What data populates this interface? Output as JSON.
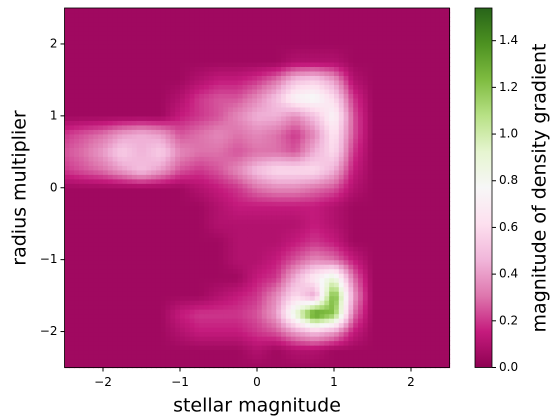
{
  "chart_data": {
    "type": "contourf",
    "xlabel": "stellar magnitude",
    "ylabel": "radius multiplier",
    "x": [
      -2.5,
      -2.25,
      -2,
      -1.75,
      -1.5,
      -1.25,
      -1,
      -0.75,
      -0.5,
      -0.25,
      0,
      0.25,
      0.5,
      0.75,
      1,
      1.25,
      1.5,
      1.75,
      2,
      2.25,
      2.5
    ],
    "y": [
      -2.5,
      -2.25,
      -2,
      -1.75,
      -1.5,
      -1.25,
      -1,
      -0.75,
      -0.5,
      -0.25,
      0,
      0.25,
      0.5,
      0.75,
      1,
      1.25,
      1.5,
      1.75,
      2,
      2.25,
      2.5
    ],
    "z": [
      [
        0.05,
        0.05,
        0.05,
        0.05,
        0.05,
        0.05,
        0.05,
        0.05,
        0.05,
        0.05,
        0.05,
        0.05,
        0.05,
        0.05,
        0.05,
        0.05,
        0.05,
        0.05,
        0.05,
        0.05,
        0.05
      ],
      [
        0.05,
        0.05,
        0.05,
        0.05,
        0.05,
        0.05,
        0.05,
        0.05,
        0.05,
        0.05,
        0.1,
        0.05,
        0.1,
        0.1,
        0.05,
        0.05,
        0.05,
        0.05,
        0.05,
        0.05,
        0.05
      ],
      [
        0.05,
        0.05,
        0.05,
        0.05,
        0.05,
        0.05,
        0.1,
        0.15,
        0.15,
        0.15,
        0.2,
        0.25,
        0.4,
        0.5,
        0.4,
        0.15,
        0.05,
        0.05,
        0.05,
        0.05,
        0.05
      ],
      [
        0.05,
        0.05,
        0.05,
        0.05,
        0.05,
        0.05,
        0.15,
        0.2,
        0.2,
        0.2,
        0.25,
        0.4,
        0.9,
        1.4,
        1.2,
        0.3,
        0.05,
        0.05,
        0.05,
        0.05,
        0.05
      ],
      [
        0.05,
        0.05,
        0.05,
        0.05,
        0.05,
        0.05,
        0.05,
        0.05,
        0.1,
        0.15,
        0.2,
        0.35,
        0.6,
        0.4,
        1.3,
        0.4,
        0.05,
        0.05,
        0.05,
        0.05,
        0.05
      ],
      [
        0.05,
        0.05,
        0.05,
        0.05,
        0.05,
        0.05,
        0.05,
        0.05,
        0.05,
        0.05,
        0.15,
        0.2,
        0.45,
        0.7,
        0.9,
        0.3,
        0.05,
        0.05,
        0.05,
        0.05,
        0.05
      ],
      [
        0.05,
        0.05,
        0.05,
        0.05,
        0.05,
        0.05,
        0.05,
        0.05,
        0.05,
        0.1,
        0.1,
        0.15,
        0.25,
        0.35,
        0.3,
        0.15,
        0.05,
        0.05,
        0.05,
        0.05,
        0.05
      ],
      [
        0.05,
        0.05,
        0.05,
        0.05,
        0.05,
        0.05,
        0.05,
        0.05,
        0.05,
        0.1,
        0.1,
        0.1,
        0.15,
        0.2,
        0.15,
        0.05,
        0.05,
        0.05,
        0.05,
        0.05,
        0.05
      ],
      [
        0.05,
        0.05,
        0.05,
        0.05,
        0.05,
        0.05,
        0.05,
        0.05,
        0.1,
        0.1,
        0.1,
        0.1,
        0.1,
        0.15,
        0.1,
        0.05,
        0.05,
        0.05,
        0.05,
        0.05,
        0.05
      ],
      [
        0.05,
        0.05,
        0.05,
        0.05,
        0.05,
        0.05,
        0.05,
        0.05,
        0.1,
        0.15,
        0.15,
        0.15,
        0.15,
        0.15,
        0.1,
        0.05,
        0.05,
        0.05,
        0.05,
        0.05,
        0.05
      ],
      [
        0.05,
        0.05,
        0.05,
        0.05,
        0.05,
        0.05,
        0.05,
        0.1,
        0.15,
        0.2,
        0.3,
        0.35,
        0.35,
        0.3,
        0.25,
        0.1,
        0.05,
        0.05,
        0.05,
        0.05,
        0.05
      ],
      [
        0.2,
        0.25,
        0.3,
        0.4,
        0.5,
        0.4,
        0.25,
        0.2,
        0.25,
        0.35,
        0.5,
        0.6,
        0.6,
        0.6,
        0.45,
        0.15,
        0.05,
        0.05,
        0.05,
        0.05,
        0.05
      ],
      [
        0.25,
        0.3,
        0.4,
        0.55,
        0.45,
        0.55,
        0.35,
        0.3,
        0.3,
        0.25,
        0.3,
        0.3,
        0.25,
        0.45,
        0.6,
        0.2,
        0.05,
        0.05,
        0.05,
        0.05,
        0.05
      ],
      [
        0.2,
        0.25,
        0.3,
        0.4,
        0.45,
        0.4,
        0.25,
        0.3,
        0.35,
        0.3,
        0.35,
        0.3,
        0.2,
        0.35,
        0.65,
        0.25,
        0.05,
        0.05,
        0.05,
        0.05,
        0.05
      ],
      [
        0.05,
        0.05,
        0.05,
        0.05,
        0.05,
        0.05,
        0.15,
        0.2,
        0.25,
        0.35,
        0.45,
        0.45,
        0.35,
        0.5,
        0.75,
        0.25,
        0.05,
        0.05,
        0.05,
        0.05,
        0.05
      ],
      [
        0.05,
        0.05,
        0.05,
        0.05,
        0.05,
        0.05,
        0.1,
        0.2,
        0.25,
        0.25,
        0.35,
        0.5,
        0.75,
        0.8,
        0.6,
        0.2,
        0.05,
        0.05,
        0.05,
        0.05,
        0.05
      ],
      [
        0.05,
        0.05,
        0.05,
        0.05,
        0.05,
        0.05,
        0.05,
        0.1,
        0.15,
        0.15,
        0.2,
        0.3,
        0.5,
        0.55,
        0.4,
        0.1,
        0.05,
        0.05,
        0.05,
        0.05,
        0.05
      ],
      [
        0.05,
        0.05,
        0.05,
        0.05,
        0.05,
        0.05,
        0.05,
        0.05,
        0.05,
        0.05,
        0.05,
        0.05,
        0.1,
        0.1,
        0.1,
        0.05,
        0.05,
        0.05,
        0.05,
        0.05,
        0.05
      ],
      [
        0.05,
        0.05,
        0.05,
        0.05,
        0.05,
        0.05,
        0.05,
        0.05,
        0.05,
        0.05,
        0.05,
        0.05,
        0.05,
        0.05,
        0.05,
        0.05,
        0.05,
        0.05,
        0.05,
        0.05,
        0.05
      ],
      [
        0.05,
        0.05,
        0.05,
        0.05,
        0.05,
        0.05,
        0.05,
        0.05,
        0.05,
        0.05,
        0.05,
        0.05,
        0.05,
        0.05,
        0.05,
        0.05,
        0.05,
        0.05,
        0.05,
        0.05,
        0.05
      ],
      [
        0.05,
        0.05,
        0.05,
        0.05,
        0.05,
        0.05,
        0.05,
        0.05,
        0.05,
        0.05,
        0.05,
        0.05,
        0.05,
        0.05,
        0.05,
        0.05,
        0.05,
        0.05,
        0.05,
        0.05,
        0.05
      ]
    ],
    "xlim": [
      -2.5,
      2.5
    ],
    "ylim": [
      -2.5,
      2.5
    ],
    "xticks": [
      {
        "value": -2,
        "label": "−2"
      },
      {
        "value": -1,
        "label": "−1"
      },
      0,
      1,
      2
    ],
    "yticks": [
      {
        "value": -2,
        "label": "−2"
      },
      {
        "value": -1,
        "label": "−1"
      },
      0,
      1,
      2
    ],
    "colormap": [
      "#8e0152",
      "#c51b7d",
      "#de77ae",
      "#f1b6da",
      "#fde0ef",
      "#f7f7f7",
      "#e6f5d0",
      "#b8e186",
      "#7fbc41",
      "#4d9221",
      "#276419"
    ],
    "colorbar": {
      "label": "magnitude of density gradient",
      "lim": [
        0,
        1.54
      ],
      "ticks": [
        {
          "value": 0,
          "label": "0.0"
        },
        {
          "value": 0.2,
          "label": "0.2"
        },
        {
          "value": 0.4,
          "label": "0.4"
        },
        {
          "value": 0.6,
          "label": "0.6"
        },
        {
          "value": 0.8,
          "label": "0.8"
        },
        {
          "value": 1.0,
          "label": "1.0"
        },
        {
          "value": 1.2,
          "label": "1.2"
        },
        {
          "value": 1.4,
          "label": "1.4"
        }
      ]
    }
  }
}
